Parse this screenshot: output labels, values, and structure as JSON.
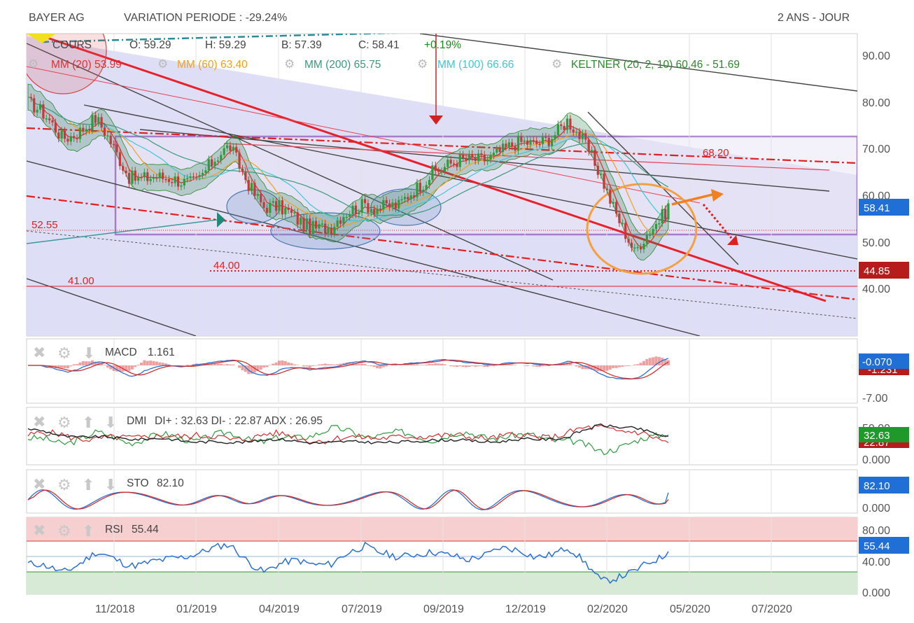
{
  "header": {
    "instrument": "BAYER AG",
    "variation_label": "VARIATION PERIODE : -29.24%",
    "period": "2 ANS - JOUR"
  },
  "price_panel": {
    "cours_label": "COURS",
    "open": "O: 59.29",
    "high": "H: 59.29",
    "low": "B: 57.39",
    "close": "C: 58.41",
    "change": "+0.19%",
    "mm20": "MM (20) 53.99",
    "mm60": "MM (60) 63.40",
    "mm200": "MM (200) 65.75",
    "mm100": "MM (100) 66.66",
    "keltner": "KELTNER (20, 2, 10) 60.46 - 51.69",
    "yticks": [
      "90.00",
      "80.00",
      "70.00",
      "60.00",
      "50.00",
      "40.00"
    ],
    "last_price_tag": "58.41",
    "support_tag": "44.85",
    "annotations": [
      "68.20",
      "52.55",
      "44.00",
      "41.00"
    ]
  },
  "macd_panel": {
    "label": "MACD",
    "value": "1.161",
    "tag": "-0.070",
    "tag_hidden": "-1.231",
    "yticks": [
      "-7.00"
    ]
  },
  "dmi_panel": {
    "label": "DMI",
    "value": "DI+ : 32.63 DI- : 22.87 ADX : 26.95",
    "tag": "32.63",
    "tag_hidden": "22.87",
    "yticks": [
      "50.00",
      "0.000"
    ]
  },
  "sto_panel": {
    "label": "STO",
    "value": "82.10",
    "tag": "82.10",
    "yticks": [
      "0.000"
    ]
  },
  "rsi_panel": {
    "label": "RSI",
    "value": "55.44",
    "tag": "55.44",
    "yticks": [
      "80.00",
      "40.00",
      "0.000"
    ]
  },
  "x_axis": [
    "11/2018",
    "01/2019",
    "04/2019",
    "07/2019",
    "09/2019",
    "12/2019",
    "02/2020",
    "05/2020",
    "07/2020"
  ],
  "colors": {
    "mm20": "#e03030",
    "mm60": "#f0a020",
    "mm200": "#3a9a7a",
    "mm100": "#40c8d0",
    "keltner": "#2a8a2a",
    "channel": "#7a2ea8",
    "up": "#2e9b3e",
    "down": "#c43a3a",
    "tag_blue": "#1f6fd6",
    "tag_red": "#b71c1c",
    "tag_green": "#1f9a2a"
  },
  "chart_data": [
    {
      "type": "line",
      "title": "BAYER AG",
      "ylabel": "",
      "ylim": [
        30,
        95
      ],
      "x": [
        "2018-09",
        "2018-10",
        "2018-11",
        "2018-12",
        "2019-01",
        "2019-02",
        "2019-03",
        "2019-04",
        "2019-05",
        "2019-06",
        "2019-07",
        "2019-08",
        "2019-09",
        "2019-10",
        "2019-11",
        "2019-12",
        "2020-01",
        "2020-02",
        "2020-03",
        "2020-03"
      ],
      "series": [
        {
          "name": "COURS",
          "values": [
            80,
            73,
            76,
            65,
            63,
            64,
            70,
            58,
            55,
            53,
            59,
            57,
            66,
            67,
            70,
            71,
            76,
            65,
            47,
            58.41
          ]
        }
      ],
      "levels": [
        68.2,
        52.55,
        44.85,
        44.0,
        41.0
      ],
      "last": 58.41
    },
    {
      "type": "line",
      "title": "RSI",
      "ylim": [
        0,
        100
      ],
      "series": [
        {
          "name": "RSI",
          "values": [
            40,
            30,
            52,
            40,
            42,
            55,
            62,
            30,
            45,
            38,
            65,
            45,
            58,
            42,
            62,
            48,
            60,
            20,
            28,
            55.44
          ]
        }
      ],
      "last": 55.44
    }
  ]
}
